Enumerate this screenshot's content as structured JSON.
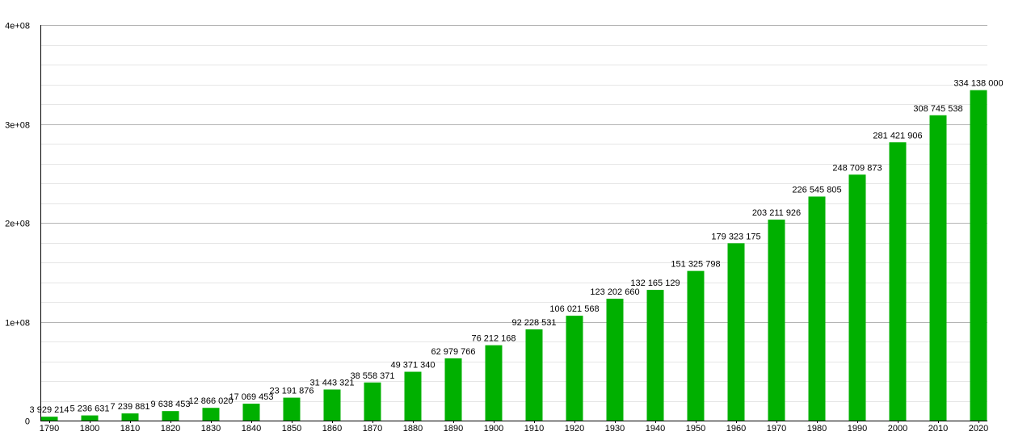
{
  "chart_data": {
    "type": "bar",
    "title": "",
    "xlabel": "",
    "ylabel": "",
    "categories": [
      "1790",
      "1800",
      "1810",
      "1820",
      "1830",
      "1840",
      "1850",
      "1860",
      "1870",
      "1880",
      "1890",
      "1900",
      "1910",
      "1920",
      "1930",
      "1940",
      "1950",
      "1960",
      "1970",
      "1980",
      "1990",
      "2000",
      "2010",
      "2020"
    ],
    "values": [
      3929214,
      5236631,
      7239881,
      9638453,
      12866020,
      17069453,
      23191876,
      31443321,
      38558371,
      49371340,
      62979766,
      76212168,
      92228531,
      106021568,
      123202660,
      132165129,
      151325798,
      179323175,
      203211926,
      226545805,
      248709873,
      281421906,
      308745538,
      334138000
    ],
    "value_labels": [
      "3 929 214",
      "5 236 631",
      "7 239 881",
      "9 638 453",
      "12 866 020",
      "17 069 453",
      "23 191 876",
      "31 443 321",
      "38 558 371",
      "49 371 340",
      "62 979 766",
      "76 212 168",
      "92 228 531",
      "106 021 568",
      "123 202 660",
      "132 165 129",
      "151 325 798",
      "179 323 175",
      "203 211 926",
      "226 545 805",
      "248 709 873",
      "281 421 906",
      "308 745 538",
      "334 138 000"
    ],
    "ylim": [
      0,
      400000000
    ],
    "y_ticks": [
      {
        "value": 0,
        "label": "0"
      },
      {
        "value": 100000000,
        "label": "1e+08"
      },
      {
        "value": 200000000,
        "label": "2e+08"
      },
      {
        "value": 300000000,
        "label": "3e+08"
      },
      {
        "value": 400000000,
        "label": "4e+08"
      }
    ],
    "minor_grid_step": 20000000,
    "grid": true,
    "legend": "none",
    "colors": {
      "bar": "#00b000",
      "major_grid": "#b4b4b4",
      "minor_grid": "#e6e6e6",
      "axis": "#000000"
    }
  }
}
